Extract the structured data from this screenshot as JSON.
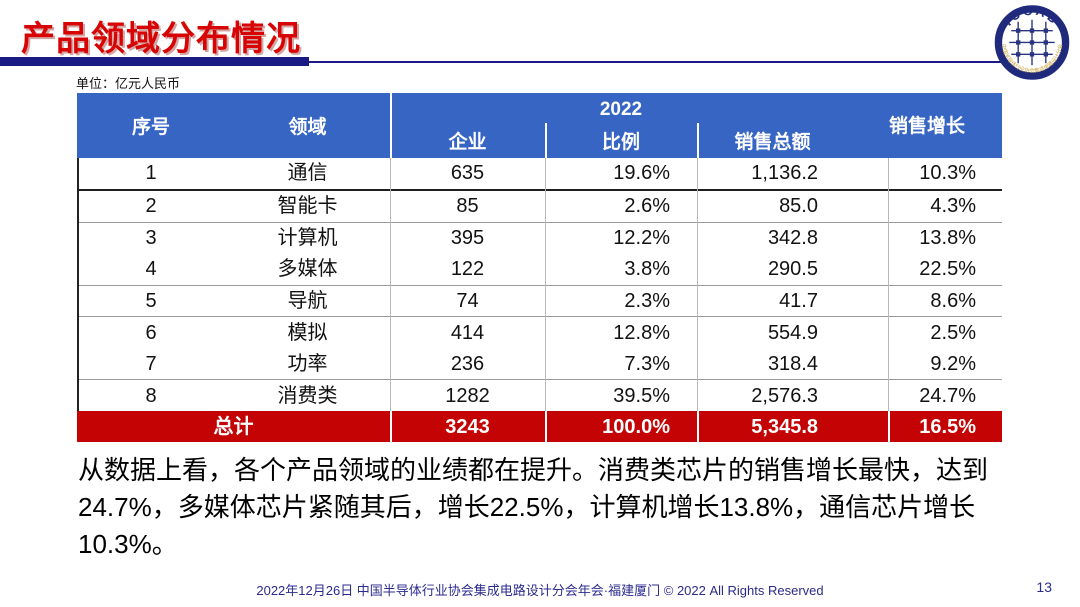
{
  "title": "产品领域分布情况",
  "unit_label": "单位：亿元人民币",
  "logo": {
    "acronym": "ICCAD",
    "ring_text": "★ 中国半导体行业协会集成电路设计分会 ★"
  },
  "table": {
    "year_header": "2022",
    "columns": {
      "no": "序号",
      "domain": "领域",
      "companies": "企业",
      "share": "比例",
      "sales": "销售总额",
      "growth": "销售增长"
    },
    "rows": [
      {
        "no": "1",
        "domain": "通信",
        "companies": "635",
        "share": "19.6%",
        "sales": "1,136.2",
        "growth": "10.3%"
      },
      {
        "no": "2",
        "domain": "智能卡",
        "companies": "85",
        "share": "2.6%",
        "sales": "85.0",
        "growth": "4.3%"
      },
      {
        "no": "3",
        "domain": "计算机",
        "companies": "395",
        "share": "12.2%",
        "sales": "342.8",
        "growth": "13.8%"
      },
      {
        "no": "4",
        "domain": "多媒体",
        "companies": "122",
        "share": "3.8%",
        "sales": "290.5",
        "growth": "22.5%"
      },
      {
        "no": "5",
        "domain": "导航",
        "companies": "74",
        "share": "2.3%",
        "sales": "41.7",
        "growth": "8.6%"
      },
      {
        "no": "6",
        "domain": "模拟",
        "companies": "414",
        "share": "12.8%",
        "sales": "554.9",
        "growth": "2.5%"
      },
      {
        "no": "7",
        "domain": "功率",
        "companies": "236",
        "share": "7.3%",
        "sales": "318.4",
        "growth": "9.2%"
      },
      {
        "no": "8",
        "domain": "消费类",
        "companies": "1282",
        "share": "39.5%",
        "sales": "2,576.3",
        "growth": "24.7%"
      }
    ],
    "total": {
      "label": "总计",
      "companies": "3243",
      "share": "100.0%",
      "sales": "5,345.8",
      "growth": "16.5%"
    }
  },
  "summary": {
    "lines": [
      "从数据上看，各个产品领域的业绩都在提升。消费类芯片的销售增长最快，达到",
      "24.7%，多媒体芯片紧随其后，增长22.5%，计算机增长13.8%，通信芯片增长",
      "10.3%。"
    ]
  },
  "footer": {
    "text": "2022年12月26日 中国半导体行业协会集成电路设计分会年会·福建厦门 © 2022 All Rights Reserved",
    "page": "13"
  },
  "colors": {
    "header_blue": "#3765c4",
    "total_red": "#c40404",
    "title_red": "#d80303",
    "rule_navy": "#1a1a85",
    "footer_navy": "#2b2b8f"
  }
}
